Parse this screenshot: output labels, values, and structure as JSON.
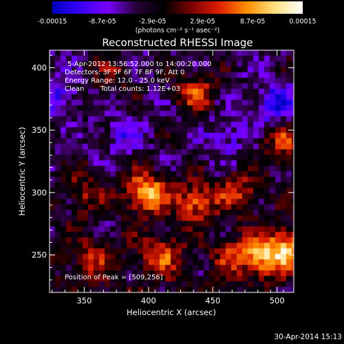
{
  "colorbar": {
    "ticks": [
      "-0.00015",
      "-8.7e-05",
      "-2.9e-05",
      "2.9e-05",
      "8.7e-05",
      "0.00015"
    ],
    "unit": "(photons cm⁻² s⁻¹ asec⁻²)",
    "colors": [
      "#0000c0",
      "#3a00ff",
      "#7a00ff",
      "#2a003a",
      "#000000",
      "#7a0000",
      "#e02000",
      "#ff9000",
      "#ffe080",
      "#ffffff"
    ]
  },
  "annotations": {
    "time_range": "5-Apr-2012 13:56:52.000 to 14:00:20.000",
    "detectors": "Detectors: 3F 5F 6F 7F 8F 9F, Att 0",
    "energy_range": "Energy Range: 12.0 - 25.0 keV",
    "clean_label": "Clean",
    "total_counts": "Total counts: 1.12E+03",
    "peak_position": "Position of Peak = [509,256]"
  },
  "footer": {
    "date": "30-Apr-2014 15:13"
  },
  "chart_data": {
    "type": "heatmap",
    "title": "Reconstructed RHESSI Image",
    "xlabel": "Heliocentric X (arcsec)",
    "ylabel": "Heliocentric Y (arcsec)",
    "xlim": [
      323,
      513
    ],
    "ylim": [
      220,
      414
    ],
    "xticks": [
      350,
      400,
      450,
      500
    ],
    "yticks": [
      250,
      300,
      350,
      400
    ],
    "zlim": [
      -0.00015,
      0.00015
    ],
    "peak": [
      509,
      256
    ],
    "sources": [
      {
        "x": 398,
        "y": 300,
        "value": 0.00015
      },
      {
        "x": 436,
        "y": 292,
        "value": 0.00011
      },
      {
        "x": 410,
        "y": 250,
        "value": 9e-05
      },
      {
        "x": 488,
        "y": 248,
        "value": 0.00012
      },
      {
        "x": 509,
        "y": 256,
        "value": 0.00013
      },
      {
        "x": 437,
        "y": 380,
        "value": 0.0001
      },
      {
        "x": 470,
        "y": 300,
        "value": 8e-05
      },
      {
        "x": 350,
        "y": 300,
        "value": 6e-05
      },
      {
        "x": 372,
        "y": 395,
        "value": 5e-05
      },
      {
        "x": 506,
        "y": 340,
        "value": 9e-05
      },
      {
        "x": 355,
        "y": 245,
        "value": 7e-05
      },
      {
        "x": 465,
        "y": 250,
        "value": 7e-05
      },
      {
        "x": 500,
        "y": 370,
        "value": -9e-05
      },
      {
        "x": 380,
        "y": 345,
        "value": -5e-05
      },
      {
        "x": 460,
        "y": 345,
        "value": -5e-05
      },
      {
        "x": 330,
        "y": 375,
        "value": -6e-05
      }
    ]
  }
}
